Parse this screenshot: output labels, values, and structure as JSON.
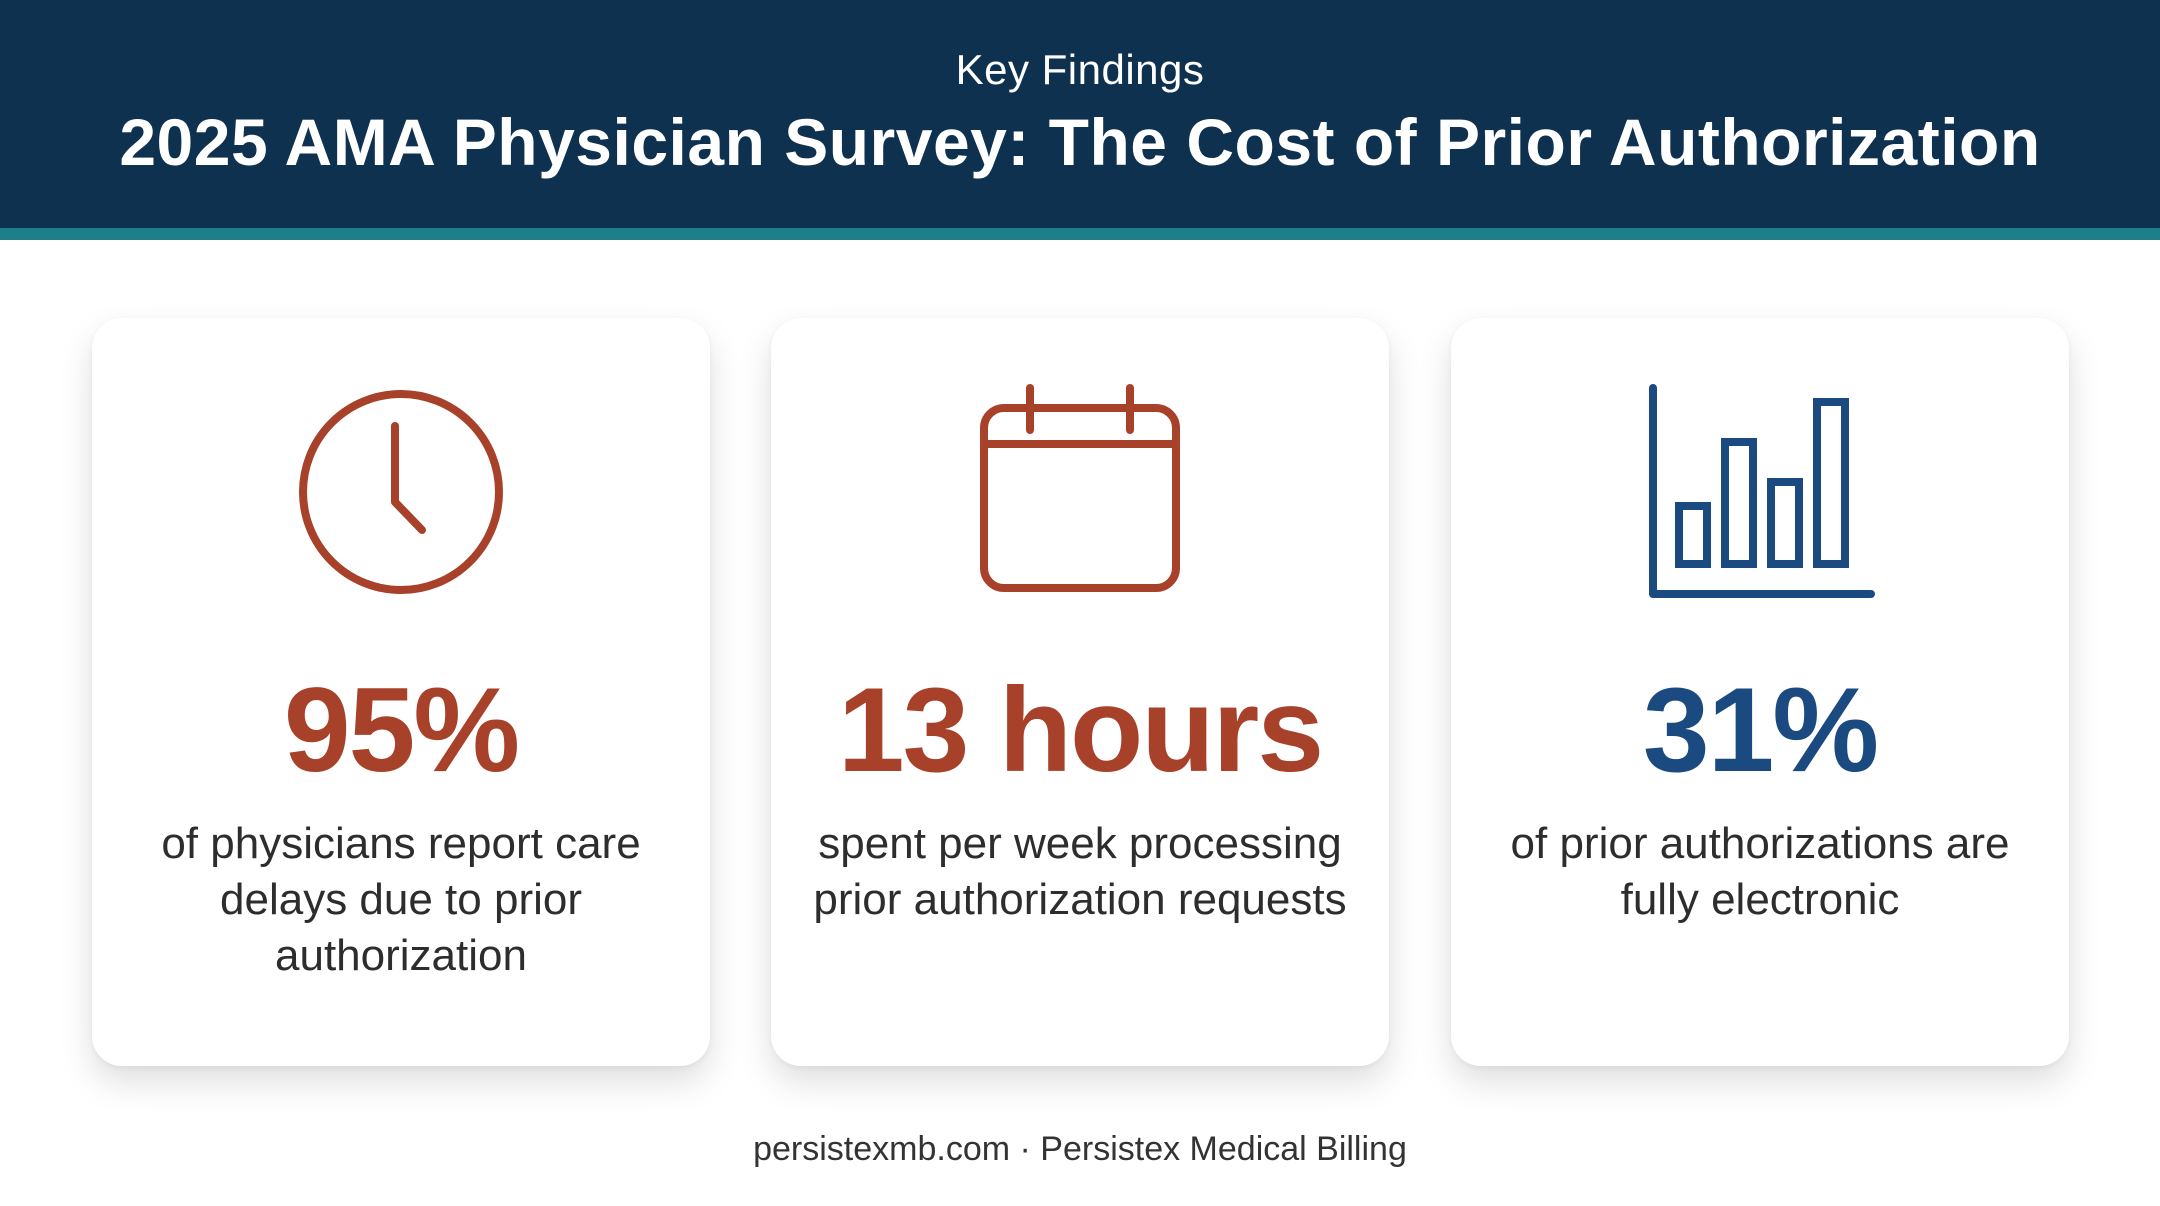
{
  "header": {
    "eyebrow": "Key Findings",
    "title": "2025 AMA Physician Survey: The Cost of Prior Authorization"
  },
  "cards": [
    {
      "icon": "clock-icon",
      "stat": "95%",
      "stat_color": "#a84129",
      "description": "of physicians report care delays due to prior authorization"
    },
    {
      "icon": "calendar-icon",
      "stat": "13 hours",
      "stat_color": "#a84129",
      "description": "spent per week processing prior authorization requests"
    },
    {
      "icon": "bar-chart-icon",
      "stat": "31%",
      "stat_color": "#1b4a80",
      "description": "of prior authorizations are fully electronic"
    }
  ],
  "footer": {
    "text": "persistexmb.com · Persistex Medical Billing"
  },
  "colors": {
    "header_bg": "#0f3150",
    "header_stripe": "#1e7f8a",
    "accent_rust": "#a84129",
    "accent_blue": "#1b4a80"
  }
}
